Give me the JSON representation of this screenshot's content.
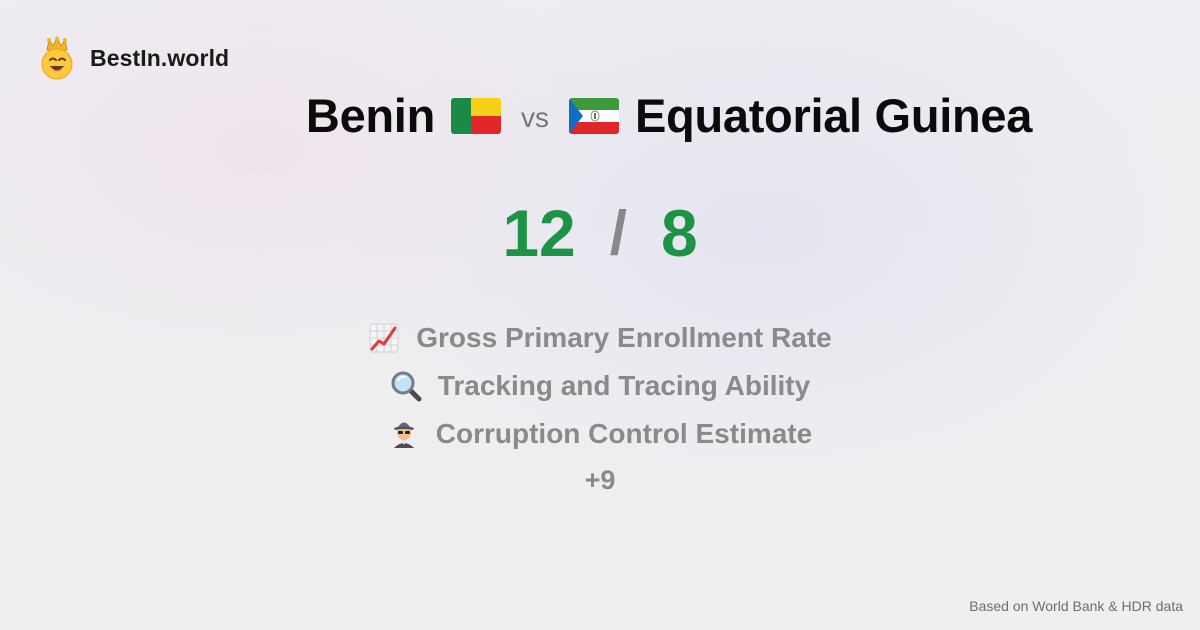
{
  "brand": {
    "name": "BestIn.world",
    "logo_icon": "crowned-smiley-icon"
  },
  "comparison": {
    "country_a": {
      "name": "Benin",
      "flag_icon": "benin-flag-icon",
      "score": "12"
    },
    "vs_label": "vs",
    "country_b": {
      "name": "Equatorial Guinea",
      "flag_icon": "equatorial-guinea-flag-icon",
      "score": "8"
    },
    "separator": "/"
  },
  "metrics": [
    {
      "label": "Gross Primary Enrollment Rate",
      "icon": "chart-increasing-icon"
    },
    {
      "label": "Tracking and Tracing Ability",
      "icon": "magnifying-glass-icon"
    },
    {
      "label": "Corruption Control Estimate",
      "icon": "detective-icon"
    }
  ],
  "more_count": "+9",
  "footer": {
    "source": "Based on World Bank & HDR data"
  },
  "colors": {
    "score_green": "#1d9345",
    "muted_text": "#8a8a8a",
    "title_text": "#0b0b0b",
    "background": "#efeef1"
  }
}
